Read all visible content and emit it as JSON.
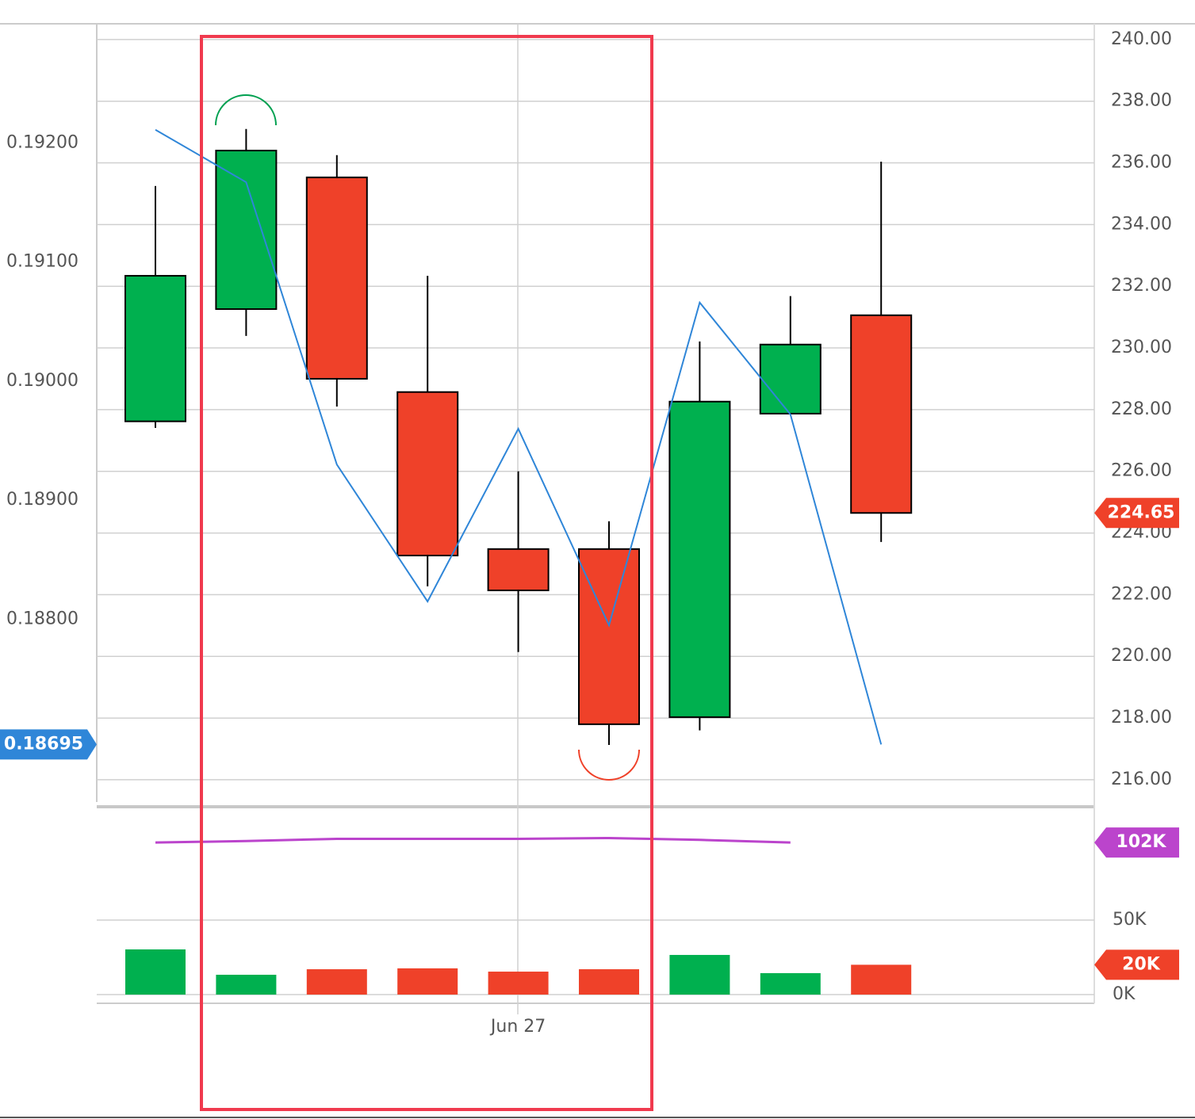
{
  "chart_data": {
    "type": "candlestick",
    "categories": [
      null,
      null,
      null,
      null,
      "Jun 27",
      null,
      null,
      null,
      null
    ],
    "open": [
      227.62,
      231.26,
      235.53,
      228.57,
      223.48,
      223.48,
      218.03,
      227.87,
      231.06
    ],
    "high": [
      235.25,
      237.1,
      236.25,
      232.34,
      226.0,
      224.38,
      230.21,
      231.68,
      236.04
    ],
    "low": [
      227.41,
      230.39,
      228.1,
      222.27,
      220.14,
      217.13,
      217.6,
      227.87,
      223.71
    ],
    "close": [
      232.34,
      236.4,
      229.0,
      223.27,
      222.14,
      217.8,
      228.26,
      230.11,
      224.65
    ],
    "up_color": "#00b04f",
    "down_color": "#ef4129",
    "ylim": [
      215.33,
      240.51
    ],
    "yticks": [
      {
        "value": 240,
        "label": "240.00"
      },
      {
        "value": 238,
        "label": "238.00"
      },
      {
        "value": 236,
        "label": "236.00"
      },
      {
        "value": 234,
        "label": "234.00"
      },
      {
        "value": 232,
        "label": "232.00"
      },
      {
        "value": 230,
        "label": "230.00"
      },
      {
        "value": 228,
        "label": "228.00"
      },
      {
        "value": 226,
        "label": "226.00"
      },
      {
        "value": 224,
        "label": "224.00"
      },
      {
        "value": 222,
        "label": "222.00"
      },
      {
        "value": 220,
        "label": "220.00"
      },
      {
        "value": 218,
        "label": "218.00"
      },
      {
        "value": 216,
        "label": "216.00"
      }
    ],
    "y2lim": [
      0.18648,
      0.193
    ],
    "y2ticks": [
      {
        "value": 0.192,
        "label": "0.19200"
      },
      {
        "value": 0.191,
        "label": "0.19100"
      },
      {
        "value": 0.19,
        "label": "0.19000"
      },
      {
        "value": 0.189,
        "label": "0.18900"
      },
      {
        "value": 0.188,
        "label": "0.18800"
      }
    ],
    "line": {
      "axis": "y2",
      "color": "#2f86d8",
      "values": [
        0.19211,
        0.19167,
        0.1893,
        0.18815,
        0.1896,
        0.18795,
        0.19066,
        0.18972,
        0.18695
      ]
    },
    "grid": true,
    "volume": {
      "type": "bar",
      "values": [
        30300,
        13300,
        17000,
        17600,
        15400,
        17000,
        26600,
        14400,
        20000
      ],
      "value_labels": [
        null,
        null,
        null,
        null,
        null,
        null,
        null,
        null,
        "20K"
      ],
      "ylim": [
        0,
        126000
      ],
      "yticks": [
        {
          "value": 50000,
          "label": "50K"
        },
        {
          "value": 0,
          "label": "0K"
        }
      ],
      "average": {
        "color": "#bb44cc",
        "values": [
          102000,
          103000,
          104500,
          104500,
          104500,
          105000,
          103800,
          102000,
          null
        ],
        "value_labels": [
          null,
          null,
          null,
          null,
          null,
          null,
          null,
          "102K",
          null
        ]
      }
    }
  }
}
